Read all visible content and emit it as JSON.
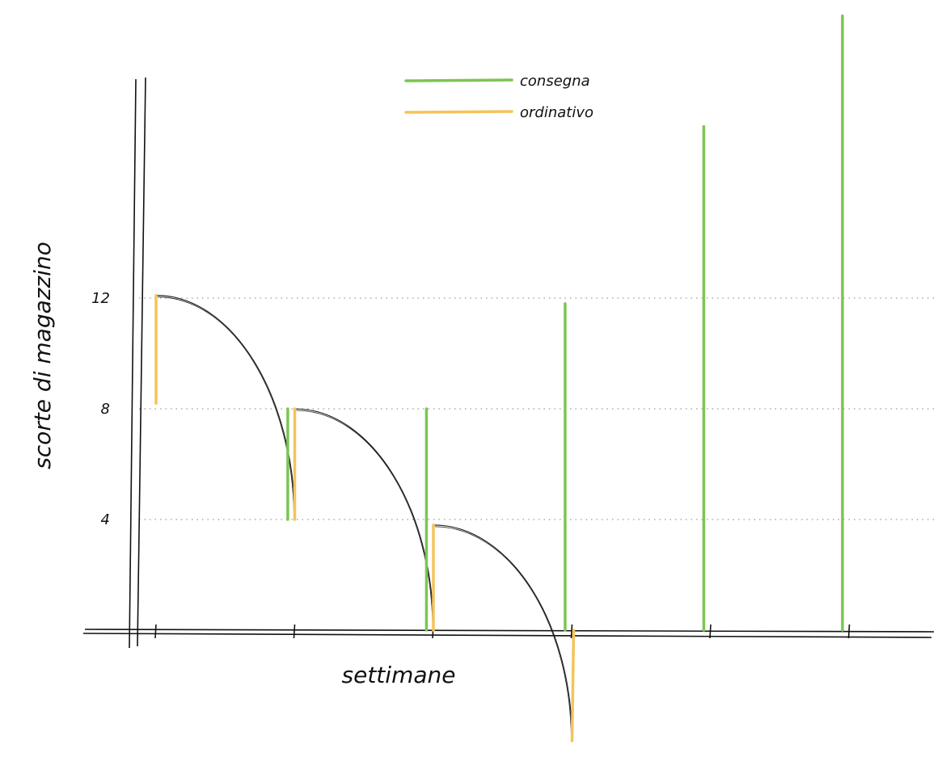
{
  "chart_data": {
    "type": "line",
    "title": "",
    "xlabel": "settimane",
    "ylabel": "scorte di magazzino",
    "ylim": [
      -4,
      22
    ],
    "xlim": [
      -0.15,
      5.6
    ],
    "yticks": [
      4,
      8,
      12
    ],
    "x_tick_positions": [
      0,
      1,
      2,
      3,
      4,
      5
    ],
    "grid": "horizontal-dotted",
    "legend_position": "top-center",
    "legend": [
      "consegna",
      "ordinativo"
    ],
    "colors": {
      "consegna": "#7cc551",
      "ordinativo": "#f5c35a",
      "curve": "#1a1a1a",
      "axis": "#111111",
      "grid": "#9a9a9a"
    },
    "stock_curves": [
      {
        "x_start": 0,
        "y_start": 12.1,
        "x_end": 1.0,
        "y_end": 4.0
      },
      {
        "x_start": 1.0,
        "y_start": 8.0,
        "x_end": 2.0,
        "y_end": 0.0
      },
      {
        "x_start": 2.0,
        "y_start": 3.8,
        "x_end": 3.0,
        "y_end": -4.0
      }
    ],
    "consegna": [
      {
        "x": 0.95,
        "from": 4,
        "to": 8
      },
      {
        "x": 1.95,
        "from": 0,
        "to": 8
      },
      {
        "x": 2.95,
        "from": 0,
        "to": 11.8
      },
      {
        "x": 3.95,
        "from": 0,
        "to": 18.2
      },
      {
        "x": 4.95,
        "from": 0,
        "to": 22.2
      }
    ],
    "ordinativo": [
      {
        "x": 0.0,
        "from": 8.2,
        "to": 12.1
      },
      {
        "x": 1.0,
        "from": 4.0,
        "to": 8.0
      },
      {
        "x": 2.0,
        "from": 0.0,
        "to": 3.8
      },
      {
        "x": 3.0,
        "from": -4.0,
        "to": 0.0
      }
    ]
  }
}
